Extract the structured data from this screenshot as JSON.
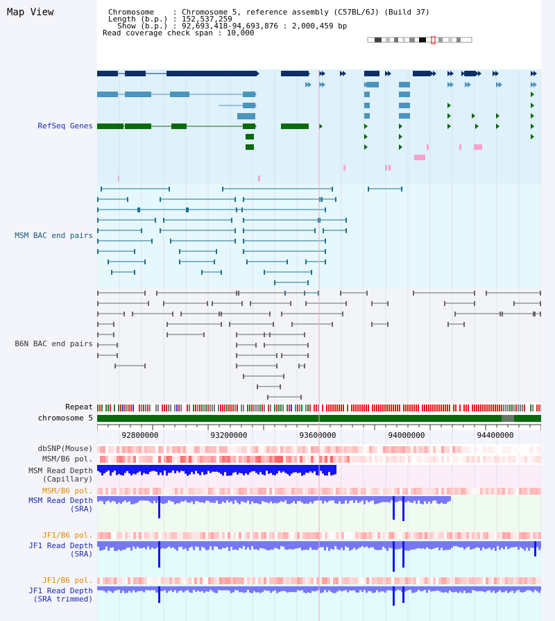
{
  "title": "Map View",
  "header": {
    "chromosome_line": "Chromosome    : Chromosome 5, reference assembly (C57BL/6J) (Build 37)",
    "length_line": "Length (b.p.) : 152,537,259",
    "show_line": "  Show (b.p.) : 92,693,418-94,693,876 : 2,000,459 bp",
    "coverage_line": "Read coverage check span : 10,000"
  },
  "colors": {
    "refseq_bg": "#dff1fb",
    "msm_bac_bg": "#e6f8fc",
    "b6n_bac_bg": "#f3f4f8",
    "refseq_dark": "#0d2f66",
    "refseq_mid": "#4a94bd",
    "refseq_green": "#0a6a0a",
    "refseq_pink": "#f6a3cf",
    "bac_teal": "#1d6f8f",
    "bac_grey": "#666666",
    "snp_red": "#f04a4a",
    "depth_blue": "#1616ee",
    "depth_light_blue": "#7777f4",
    "chromosome_green": "#0a6a0a"
  },
  "tracks": {
    "refseq": "RefSeq Genes",
    "msm_bac": "MSM BAC end pairs",
    "b6n_bac": "B6N BAC end pairs",
    "repeat": "Repeat",
    "chromosome": "chromosome 5",
    "dbsnp": "dbSNP(Mouse)",
    "msm_b6_pol": "MSM/B6 pol.",
    "msm_depth_cap_1": "MSM Read Depth",
    "msm_depth_cap_2": "(Capillary)",
    "msm_b6_pol_2": "MSM/B6 pol.",
    "msm_depth_sra_1": "MSM Read Depth",
    "msm_depth_sra_2": "(SRA)",
    "jf1_b6_pol": "JF1/B6 pol.",
    "jf1_depth_sra_1": "JF1 Read Depth",
    "jf1_depth_sra_2": "(SRA)",
    "jf1_b6_pol_2": "JF1/B6 pol.",
    "jf1_depth_trim_1": "JF1 Read Depth",
    "jf1_depth_trim_2": "(SRA trimmed)"
  },
  "axis_ticks": [
    "92800000",
    "93200000",
    "93600000",
    "94000000",
    "94400000"
  ]
}
